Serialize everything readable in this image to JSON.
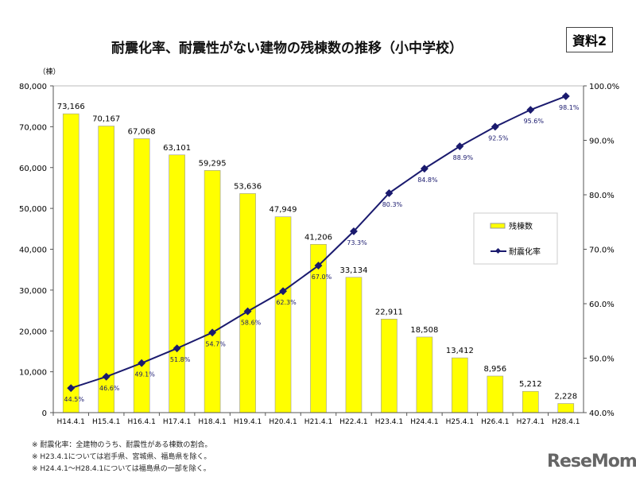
{
  "badge": "資料2",
  "notes": [
    "※ 耐震化率：全建物のうち、耐震性がある棟数の割合。",
    "※ H23.4.1については岩手県、宮城県、福島県を除く。",
    "※ H24.4.1～H28.4.1については福島県の一部を除く。"
  ],
  "logo": "ReseMom",
  "chart_data": {
    "type": "bar+line",
    "title": "耐震化率、耐震性がない建物の残棟数の推移（小中学校）",
    "ylabel": "（棟）",
    "categories": [
      "H14.4.1",
      "H15.4.1",
      "H16.4.1",
      "H17.4.1",
      "H18.4.1",
      "H19.4.1",
      "H20.4.1",
      "H21.4.1",
      "H22.4.1",
      "H23.4.1",
      "H24.4.1",
      "H25.4.1",
      "H26.4.1",
      "H27.4.1",
      "H28.4.1"
    ],
    "ylim": [
      0,
      80000
    ],
    "y2lim": [
      40,
      100
    ],
    "yticks": [
      "0",
      "10,000",
      "20,000",
      "30,000",
      "40,000",
      "50,000",
      "60,000",
      "70,000",
      "80,000"
    ],
    "y2ticks": [
      "40.0%",
      "50.0%",
      "60.0%",
      "70.0%",
      "80.0%",
      "90.0%",
      "100.0%"
    ],
    "legend_position": "right",
    "series": [
      {
        "name": "残棟数",
        "type": "bar",
        "color": "#ffff00",
        "values": [
          73166,
          70167,
          67068,
          63101,
          59295,
          53636,
          47949,
          41206,
          33134,
          22911,
          18508,
          13412,
          8956,
          5212,
          2228
        ],
        "labels": [
          "73,166",
          "70,167",
          "67,068",
          "63,101",
          "59,295",
          "53,636",
          "47,949",
          "41,206",
          "33,134",
          "22,911",
          "18,508",
          "13,412",
          "8,956",
          "5,212",
          "2,228"
        ]
      },
      {
        "name": "耐震化率",
        "type": "line",
        "axis": "right",
        "color": "#1a1a6e",
        "values": [
          44.5,
          46.6,
          49.1,
          51.8,
          54.7,
          58.6,
          62.3,
          67.0,
          73.3,
          80.3,
          84.8,
          88.9,
          92.5,
          95.6,
          98.1
        ],
        "labels": [
          "44.5%",
          "46.6%",
          "49.1%",
          "51.8%",
          "54.7%",
          "58.6%",
          "62.3%",
          "67.0%",
          "73.3%",
          "80.3%",
          "84.8%",
          "88.9%",
          "92.5%",
          "95.6%",
          "98.1%"
        ]
      }
    ]
  }
}
